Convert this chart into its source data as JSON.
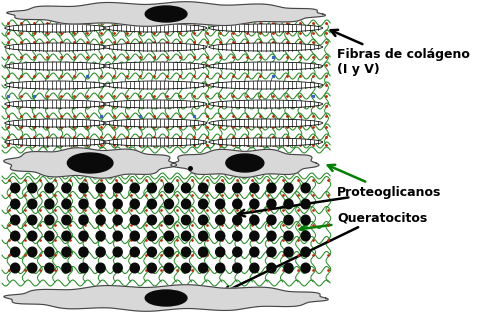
{
  "fig_width": 4.94,
  "fig_height": 3.2,
  "dpi": 100,
  "bg_color": "#ffffff",
  "label_fibras": "Fibras de colágeno\n(I y V)",
  "label_proteoglicanos": "Proteoglicanos",
  "label_queratocitos": "Queratocitos",
  "label_color_black": "#000000",
  "arrow_color_black": "#000000",
  "arrow_color_green": "#008000",
  "cell_color": "#d8d8d8",
  "cell_edge": "#444444",
  "nucleus_color": "#0a0a0a",
  "proteoglycan_color": "#0a0a0a",
  "wavy_color": "#228B22",
  "red_dot_color": "#cc2200",
  "blue_mark_color": "#3366cc",
  "fiber_bg": "#ffffff",
  "fiber_stripe": "#111111"
}
